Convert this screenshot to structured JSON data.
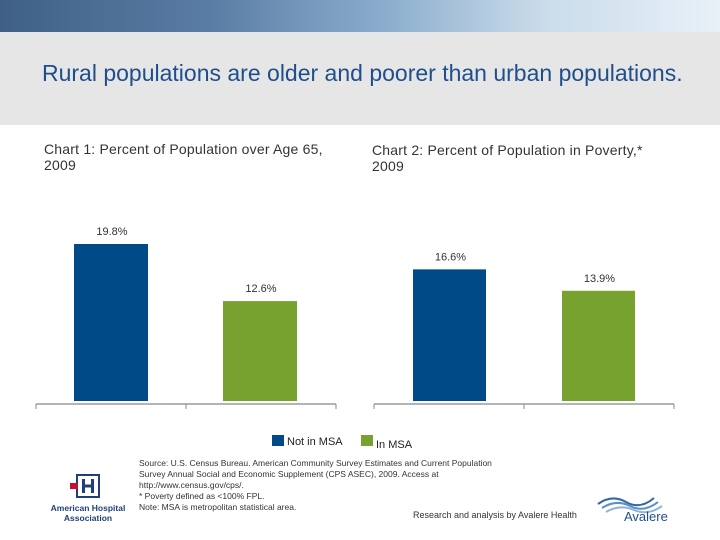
{
  "slide": {
    "title": "Rural populations are older and poorer than urban populations."
  },
  "chart_data": [
    {
      "type": "bar",
      "title": "Chart 1: Percent of Population over Age 65, 2009",
      "categories": [
        "Not in MSA",
        "In MSA"
      ],
      "values": [
        19.8,
        12.6
      ],
      "data_labels": [
        "19.8%",
        "12.6%"
      ],
      "unit": "%",
      "ylim": [
        0,
        20
      ],
      "grid": false
    },
    {
      "type": "bar",
      "title": "Chart 2: Percent of Population in Poverty,* 2009",
      "categories": [
        "Not in MSA",
        "In MSA"
      ],
      "values": [
        16.6,
        13.9
      ],
      "data_labels": [
        "16.6%",
        "13.9%"
      ],
      "unit": "%",
      "ylim": [
        0,
        20
      ],
      "grid": false
    }
  ],
  "legend": {
    "items": [
      {
        "label": "Not in MSA",
        "color": "#004b87"
      },
      {
        "label": "In MSA",
        "color": "#78a22f"
      }
    ]
  },
  "footnotes": {
    "lines": [
      "Source: U.S. Census Bureau. American Community Survey Estimates and Current Population",
      "Survey Annual Social and Economic Supplement (CPS ASEC), 2009. Access at",
      "http://www.census.gov/cps/.",
      "* Poverty defined as <100% FPL.",
      "Note: MSA is metropolitan statistical area."
    ],
    "credit": "Research and analysis by Avalere Health"
  },
  "logos": {
    "aha": "American Hospital Association",
    "avalere": "Avalere"
  },
  "colors": {
    "not_in_msa": "#004b87",
    "in_msa": "#78a22f",
    "title": "#1f4e8c"
  }
}
